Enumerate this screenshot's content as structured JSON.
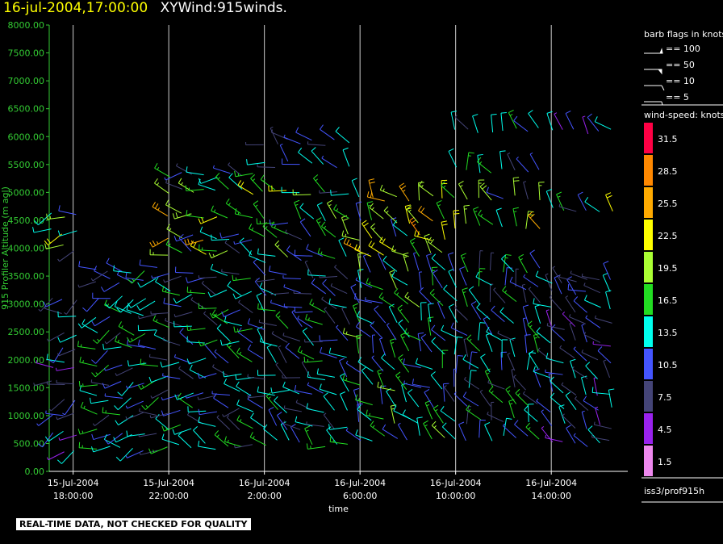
{
  "header": {
    "timestamp": "16-jul-2004,17:00:00",
    "title": "XYWind:915winds."
  },
  "notice": "REAL-TIME DATA, NOT CHECKED FOR QUALITY",
  "legend": {
    "barb_title": "barb flags in knots",
    "barb_items": [
      "== 100",
      "== 50",
      "== 10",
      "== 5"
    ],
    "speed_title": "wind-speed: knots",
    "speed_bins": [
      {
        "label": "31.5",
        "color": "#ff0044"
      },
      {
        "label": "28.5",
        "color": "#ff8800"
      },
      {
        "label": "25.5",
        "color": "#ffaa00"
      },
      {
        "label": "22.5",
        "color": "#ffff00"
      },
      {
        "label": "19.5",
        "color": "#aaff33"
      },
      {
        "label": "16.5",
        "color": "#22dd22"
      },
      {
        "label": "13.5",
        "color": "#00ffee"
      },
      {
        "label": "10.5",
        "color": "#4455ff"
      },
      {
        "label": "7.5",
        "color": "#444477"
      },
      {
        "label": "4.5",
        "color": "#9922ee"
      },
      {
        "label": "1.5",
        "color": "#ee88ee"
      }
    ],
    "source": "iss3/prof915h"
  },
  "chart_data": {
    "type": "scatter",
    "title": "XYWind:915winds.",
    "xlabel": "time",
    "ylabel": "915 Profiler Altitude (m agl)",
    "ylim": [
      0,
      8000
    ],
    "yticks": [
      "0.00",
      "500.00",
      "1000.00",
      "1500.00",
      "2000.00",
      "2500.00",
      "3000.00",
      "3500.00",
      "4000.00",
      "4500.00",
      "5000.00",
      "5500.00",
      "6000.00",
      "6500.00",
      "7000.00",
      "7500.00",
      "8000.00"
    ],
    "xticks": [
      {
        "date": "15-Jul-2004",
        "time": "18:00:00",
        "hour": 18
      },
      {
        "date": "15-Jul-2004",
        "time": "22:00:00",
        "hour": 22
      },
      {
        "date": "16-Jul-2004",
        "time": "2:00:00",
        "hour": 26
      },
      {
        "date": "16-Jul-2004",
        "time": "6:00:00",
        "hour": 30
      },
      {
        "date": "16-Jul-2004",
        "time": "10:00:00",
        "hour": 34
      },
      {
        "date": "16-Jul-2004",
        "time": "14:00:00",
        "hour": 38
      }
    ],
    "xlim_hours": [
      17.0,
      41.2
    ],
    "grid": "vertical lines at x ticks",
    "series": [
      {
        "kind": "wind-barbs",
        "hours_start": 17.1,
        "hours_end": 40.5,
        "step_hours": 0.5,
        "profiles": [
          {
            "from": 17.1,
            "to": 18.5,
            "altitudes": [
              400,
              700,
              1000,
              1300,
              1600,
              1900,
              2200,
              2500,
              2800,
              3100,
              4000,
              4300,
              4600
            ],
            "speed": 10,
            "dir": 250
          },
          {
            "from": 19.0,
            "to": 21.5,
            "altitudes": [
              400,
              700,
              1000,
              1300,
              1600,
              1900,
              2200,
              2500,
              2800,
              3100,
              3400,
              3600
            ],
            "speed": 13,
            "dir": 260
          },
          {
            "from": 22.0,
            "to": 25.5,
            "altitudes": [
              450,
              800,
              1100,
              1400,
              1700,
              2000,
              2300,
              2600,
              2900,
              3200,
              3500,
              3900,
              4200,
              4600,
              5000,
              5300
            ],
            "speed": 12,
            "dir": 280
          },
          {
            "from": 26.0,
            "to": 29.5,
            "altitudes": [
              500,
              800,
              1100,
              1400,
              1700,
              2000,
              2300,
              2600,
              2900,
              3200,
              3500,
              3800,
              4200,
              4500,
              5000,
              5500,
              5900
            ],
            "speed": 11,
            "dir": 300
          },
          {
            "from": 30.0,
            "to": 33.5,
            "altitudes": [
              600,
              900,
              1200,
              1500,
              1800,
              2100,
              2400,
              2700,
              3000,
              3300,
              3600,
              3900,
              4200,
              4500,
              4900
            ],
            "speed": 14,
            "dir": 320
          },
          {
            "from": 34.0,
            "to": 37.5,
            "altitudes": [
              600,
              900,
              1200,
              1500,
              1800,
              2100,
              2400,
              2700,
              3000,
              3300,
              3600,
              4400,
              4900,
              5400,
              6100
            ],
            "speed": 12,
            "dir": 330
          },
          {
            "from": 38.0,
            "to": 40.5,
            "altitudes": [
              500,
              800,
              1100,
              1400,
              1700,
              2000,
              2300,
              2600,
              2900,
              3200,
              3400,
              4700,
              6100
            ],
            "speed": 10,
            "dir": 310
          }
        ]
      }
    ]
  }
}
